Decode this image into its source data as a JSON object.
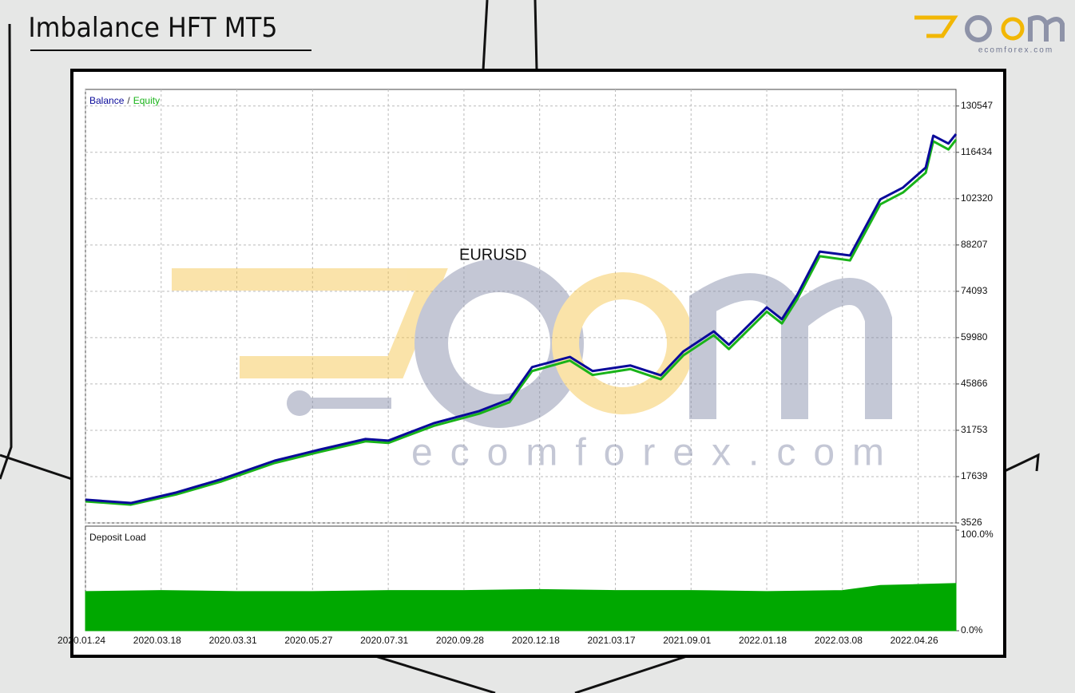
{
  "header": {
    "title": "Imbalance HFT MT5",
    "brand": "ecomforex.com"
  },
  "chart_data": [
    {
      "type": "line",
      "legend_separator": "/",
      "annotation": "EURUSD",
      "x": [
        0,
        6,
        12,
        18,
        25,
        31,
        37,
        40,
        46,
        52,
        56,
        59,
        64,
        67,
        72,
        76,
        79,
        83,
        85,
        90,
        92,
        94,
        97,
        101,
        105,
        108,
        111,
        112,
        114,
        115
      ],
      "series": [
        {
          "name": "Balance",
          "color": "#0a0a9a",
          "values": [
            10600,
            9600,
            12800,
            16900,
            22500,
            25900,
            29100,
            28600,
            33900,
            37600,
            41200,
            51000,
            54100,
            49800,
            51500,
            48500,
            55800,
            61900,
            57800,
            69200,
            65600,
            72900,
            86200,
            85000,
            102100,
            105700,
            111800,
            121500,
            119100,
            122000
          ]
        },
        {
          "name": "Equity",
          "color": "#19b319",
          "values": [
            10100,
            9100,
            12200,
            16200,
            21800,
            25200,
            28400,
            27900,
            33100,
            36800,
            40300,
            49800,
            53000,
            48600,
            50400,
            47300,
            54600,
            60700,
            56500,
            67900,
            64300,
            71600,
            84800,
            83500,
            100600,
            104200,
            110200,
            119800,
            117300,
            120300
          ]
        }
      ],
      "xlim": [
        0,
        115
      ],
      "ylim": [
        3526,
        135600
      ],
      "yticks": [
        3526,
        17639,
        31753,
        45866,
        59980,
        74093,
        88207,
        102320,
        116434,
        130547
      ],
      "grid": true
    },
    {
      "type": "area",
      "title": "Deposit Load",
      "color": "#00a800",
      "x": [
        0,
        10,
        20,
        30,
        40,
        50,
        60,
        70,
        80,
        90,
        100,
        105,
        110,
        115
      ],
      "values": [
        39,
        40,
        39,
        39,
        40,
        40,
        41,
        40,
        40,
        39,
        40,
        45,
        46,
        47
      ],
      "xlim": [
        0,
        115
      ],
      "ylim": [
        0,
        100
      ],
      "yticks": [
        {
          "value": 0,
          "label": "0.0%"
        },
        {
          "value": 100,
          "label": "100.0%"
        }
      ],
      "xticks": [
        {
          "value": 0,
          "label": "2020.01.24"
        },
        {
          "value": 10,
          "label": "2020.03.18"
        },
        {
          "value": 20,
          "label": "2020.03.31"
        },
        {
          "value": 30,
          "label": "2020.05.27"
        },
        {
          "value": 40,
          "label": "2020.07.31"
        },
        {
          "value": 50,
          "label": "2020.09.28"
        },
        {
          "value": 60,
          "label": "2020.12.18"
        },
        {
          "value": 70,
          "label": "2021.03.17"
        },
        {
          "value": 80,
          "label": "2021.09.01"
        },
        {
          "value": 90,
          "label": "2022.01.18"
        },
        {
          "value": 100,
          "label": "2022.03.08"
        },
        {
          "value": 110,
          "label": "2022.04.26"
        }
      ],
      "grid": true
    }
  ]
}
